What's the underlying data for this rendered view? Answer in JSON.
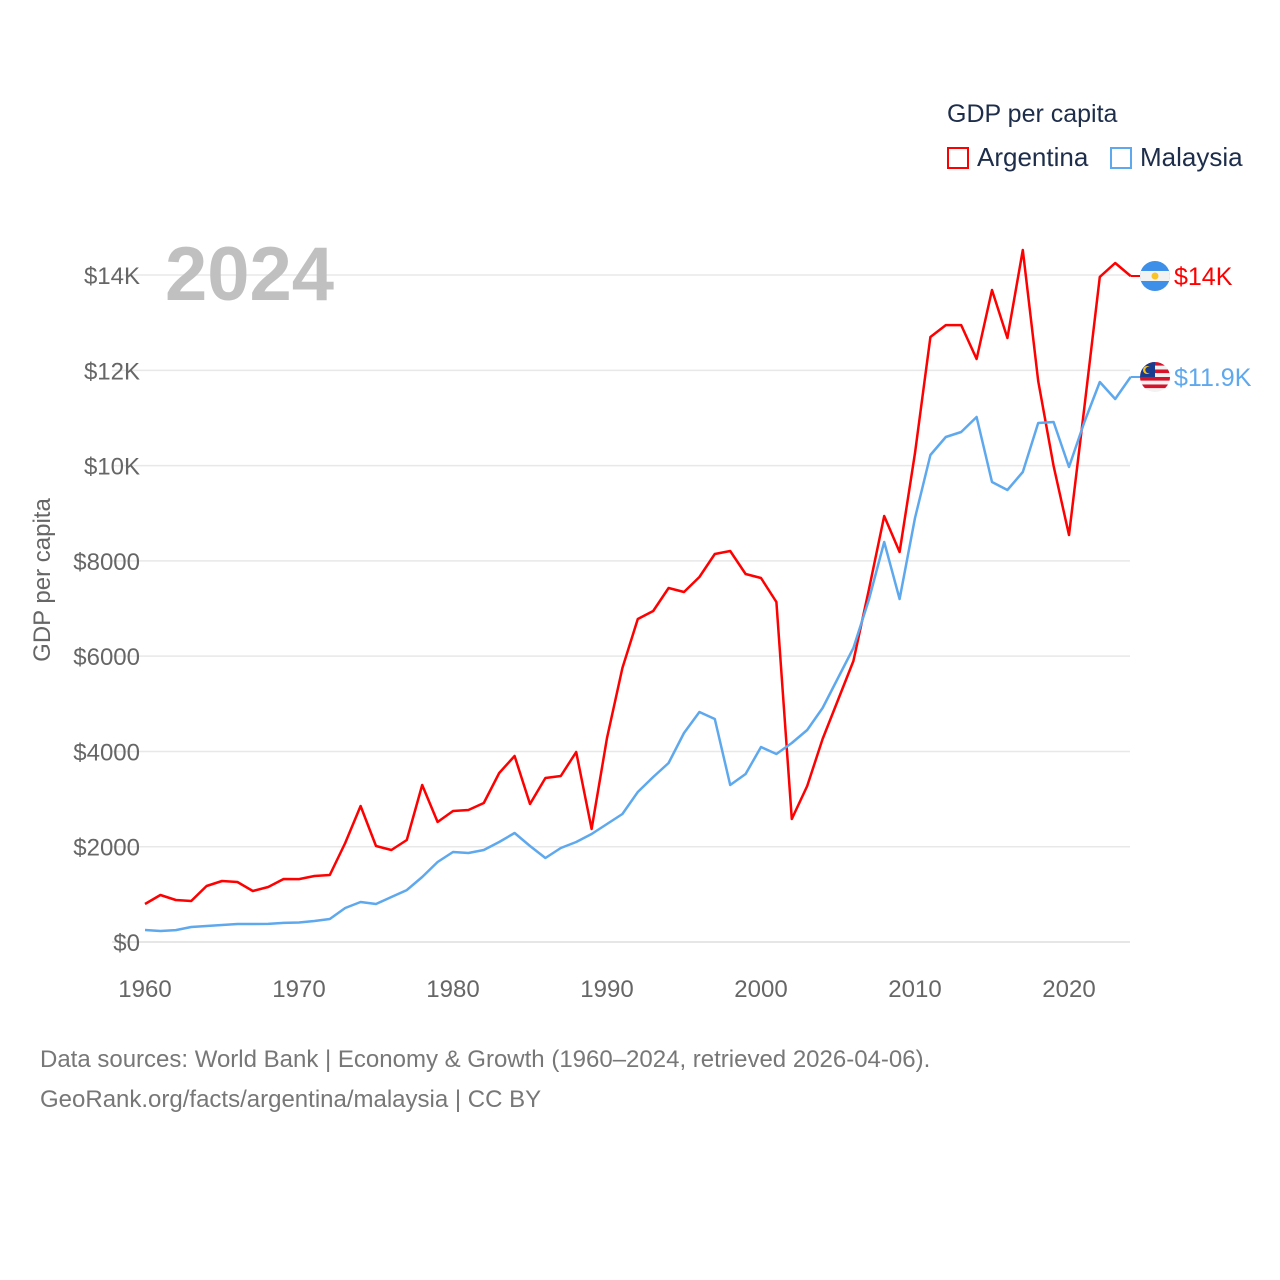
{
  "chart_data": {
    "type": "line",
    "title": "GDP per capita",
    "ylabel": "GDP per capita",
    "xlabel": "",
    "year_label": "2024",
    "xlim": [
      1960,
      2024
    ],
    "ylim": [
      0,
      14600
    ],
    "x_ticks": [
      1960,
      1970,
      1980,
      1990,
      2000,
      2010,
      2020
    ],
    "y_ticks": [
      0,
      2000,
      4000,
      6000,
      8000,
      10000,
      12000,
      14000
    ],
    "y_tick_labels": [
      "$0",
      "$2000",
      "$4000",
      "$6000",
      "$8000",
      "$10K",
      "$12K",
      "$14K"
    ],
    "grid": true,
    "legend_position": "top-right",
    "x": [
      1960,
      1961,
      1962,
      1963,
      1964,
      1965,
      1966,
      1967,
      1968,
      1969,
      1970,
      1971,
      1972,
      1973,
      1974,
      1975,
      1976,
      1977,
      1978,
      1979,
      1980,
      1981,
      1982,
      1983,
      1984,
      1985,
      1986,
      1987,
      1988,
      1989,
      1990,
      1991,
      1992,
      1993,
      1994,
      1995,
      1996,
      1997,
      1998,
      1999,
      2000,
      2001,
      2002,
      2003,
      2004,
      2005,
      2006,
      2007,
      2008,
      2009,
      2010,
      2011,
      2012,
      2013,
      2014,
      2015,
      2016,
      2017,
      2018,
      2019,
      2020,
      2021,
      2022,
      2023,
      2024
    ],
    "series": [
      {
        "name": "Argentina",
        "color": "#ff0000",
        "end_label": "$14K",
        "values": [
          798,
          987,
          882,
          861,
          1175,
          1280,
          1260,
          1070,
          1155,
          1322,
          1320,
          1385,
          1406,
          2078,
          2855,
          2015,
          1931,
          2141,
          3295,
          2519,
          2750,
          2770,
          2918,
          3547,
          3904,
          2897,
          3442,
          3485,
          3988,
          2372,
          4282,
          5751,
          6780,
          6948,
          7431,
          7347,
          7662,
          8145,
          8207,
          7725,
          7640,
          7137,
          2582,
          3275,
          4261,
          5080,
          5898,
          7389,
          8942,
          8186,
          10264,
          12700,
          12950,
          12950,
          12237,
          13686,
          12678,
          14525,
          11776,
          9992,
          8543,
          11230,
          13960,
          14253,
          13980
        ]
      },
      {
        "name": "Malaysia",
        "color": "#5ea8ee",
        "end_label": "$11.9K",
        "values": [
          252,
          231,
          250,
          315,
          336,
          357,
          378,
          378,
          380,
          400,
          410,
          440,
          483,
          714,
          840,
          798,
          945,
          1090,
          1364,
          1680,
          1890,
          1868,
          1931,
          2099,
          2288,
          2015,
          1763,
          1973,
          2099,
          2267,
          2477,
          2687,
          3149,
          3464,
          3757,
          4387,
          4828,
          4681,
          3295,
          3526,
          4093,
          3946,
          4177,
          4450,
          4912,
          5542,
          6171,
          7179,
          8396,
          7200,
          8900,
          10222,
          10600,
          10705,
          11020,
          9656,
          9488,
          9866,
          10894,
          10915,
          9970,
          10915,
          11755,
          11398,
          11860
        ]
      }
    ]
  },
  "footer": {
    "line1": "Data sources: World Bank | Economy & Growth (1960–2024, retrieved 2026-04-06).",
    "line2": "GeoRank.org/facts/argentina/malaysia | CC BY"
  }
}
